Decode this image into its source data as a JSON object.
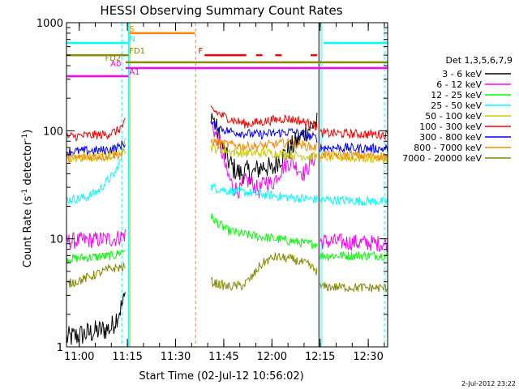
{
  "chart_data": {
    "type": "line",
    "title": "HESSI Observing Summary Count Rates",
    "ylabel_main": "Count Rate (s",
    "ylabel_sup1": "-1",
    "ylabel_mid": " detector",
    "ylabel_sup2": "-1",
    "ylabel_end": ")",
    "xlabel": "Start Time (02-Jul-12 10:56:02)",
    "timestamp": "2-Jul-2012 23:22",
    "y_scale": "log",
    "ylim": [
      1,
      1000
    ],
    "xlim_minutes": [
      0,
      100
    ],
    "yticks": [
      {
        "value": 1,
        "label": "1"
      },
      {
        "value": 10,
        "label": "10"
      },
      {
        "value": 100,
        "label": "100"
      },
      {
        "value": 1000,
        "label": "1000"
      }
    ],
    "xticks": [
      {
        "minute": 3.97,
        "label": "11:00"
      },
      {
        "minute": 18.97,
        "label": "11:15"
      },
      {
        "minute": 33.97,
        "label": "11:30"
      },
      {
        "minute": 48.97,
        "label": "11:45"
      },
      {
        "minute": 63.97,
        "label": "12:00"
      },
      {
        "minute": 78.97,
        "label": "12:15"
      },
      {
        "minute": 93.97,
        "label": "12:30"
      }
    ],
    "legend_header": "Det 1,3,5,6,7,9",
    "series": [
      {
        "name": "3 - 6 keV",
        "color": "#000000",
        "before": [
          [
            0,
            1.2
          ],
          [
            14,
            1.5
          ],
          [
            17.5,
            2.5
          ],
          [
            18.4,
            3
          ]
        ],
        "after": [
          [
            45,
            150
          ],
          [
            46,
            120
          ],
          [
            48,
            80
          ],
          [
            50,
            55
          ],
          [
            52,
            45
          ],
          [
            54,
            40
          ],
          [
            56,
            42
          ],
          [
            58,
            40
          ],
          [
            60,
            45
          ],
          [
            62,
            48
          ],
          [
            64,
            42
          ],
          [
            66,
            55
          ],
          [
            68,
            60
          ],
          [
            70,
            70
          ],
          [
            72,
            80
          ],
          [
            74,
            95
          ],
          [
            76,
            110
          ],
          [
            78,
            118
          ]
        ],
        "post": []
      },
      {
        "name": "6 - 12 keV",
        "color": "#ff00ff",
        "before": [
          [
            0,
            9.5
          ],
          [
            15,
            10
          ],
          [
            18.4,
            11
          ]
        ],
        "after": [
          [
            45,
            120
          ],
          [
            46,
            100
          ],
          [
            48,
            70
          ],
          [
            50,
            40
          ],
          [
            52,
            30
          ],
          [
            54,
            28
          ],
          [
            56,
            35
          ],
          [
            58,
            32
          ],
          [
            60,
            28
          ],
          [
            62,
            35
          ],
          [
            64,
            32
          ],
          [
            66,
            40
          ],
          [
            68,
            48
          ],
          [
            70,
            52
          ],
          [
            72,
            45
          ],
          [
            74,
            40
          ],
          [
            76,
            50
          ],
          [
            78,
            60
          ]
        ],
        "post": [
          [
            79,
            9.5
          ],
          [
            100,
            9
          ]
        ]
      },
      {
        "name": "12 - 25 keV",
        "color": "#00ff00",
        "before": [
          [
            0,
            6.5
          ],
          [
            15,
            7
          ],
          [
            18.4,
            8
          ]
        ],
        "after": [
          [
            45,
            16
          ],
          [
            47,
            14
          ],
          [
            50,
            12
          ],
          [
            55,
            11
          ],
          [
            60,
            10.5
          ],
          [
            65,
            10
          ],
          [
            70,
            9.5
          ],
          [
            75,
            9
          ],
          [
            78,
            9
          ]
        ],
        "post": [
          [
            79,
            7
          ],
          [
            100,
            7
          ]
        ]
      },
      {
        "name": "25 - 50 keV",
        "color": "#00ffff",
        "before": [
          [
            0,
            23
          ],
          [
            6,
            24
          ],
          [
            10,
            28
          ],
          [
            13,
            35
          ],
          [
            15,
            40
          ],
          [
            17,
            55
          ],
          [
            18.4,
            100
          ]
        ],
        "after": [
          [
            45,
            30
          ],
          [
            50,
            28
          ],
          [
            55,
            27
          ],
          [
            60,
            26
          ],
          [
            65,
            25
          ],
          [
            70,
            24
          ],
          [
            75,
            23.5
          ],
          [
            78,
            23
          ]
        ],
        "post": [
          [
            79,
            23
          ],
          [
            100,
            22
          ]
        ]
      },
      {
        "name": "50 - 100 keV",
        "color": "#cccc00",
        "before": [
          [
            0,
            55
          ],
          [
            12,
            57
          ],
          [
            15,
            62
          ],
          [
            17,
            68
          ],
          [
            18.4,
            80
          ]
        ],
        "after": [
          [
            45,
            70
          ],
          [
            50,
            65
          ],
          [
            55,
            62
          ],
          [
            60,
            62
          ],
          [
            65,
            62
          ],
          [
            70,
            60
          ],
          [
            75,
            58
          ],
          [
            78,
            58
          ]
        ],
        "post": [
          [
            79,
            57
          ],
          [
            100,
            55
          ]
        ]
      },
      {
        "name": "100 - 300 keV",
        "color": "#ff0000",
        "before": [
          [
            0,
            88
          ],
          [
            12,
            92
          ],
          [
            16,
            100
          ],
          [
            18.4,
            120
          ]
        ],
        "after": [
          [
            45,
            160
          ],
          [
            48,
            140
          ],
          [
            52,
            125
          ],
          [
            56,
            115
          ],
          [
            60,
            120
          ],
          [
            64,
            125
          ],
          [
            68,
            130
          ],
          [
            72,
            125
          ],
          [
            76,
            115
          ],
          [
            78,
            110
          ]
        ],
        "post": [
          [
            79,
            95
          ],
          [
            100,
            92
          ]
        ]
      },
      {
        "name": "300 - 800 keV",
        "color": "#0000ff",
        "before": [
          [
            0,
            64
          ],
          [
            12,
            66
          ],
          [
            16,
            70
          ],
          [
            18.4,
            78
          ]
        ],
        "after": [
          [
            45,
            115
          ],
          [
            50,
            100
          ],
          [
            55,
            95
          ],
          [
            60,
            92
          ],
          [
            65,
            95
          ],
          [
            70,
            98
          ],
          [
            75,
            90
          ],
          [
            78,
            85
          ]
        ],
        "post": [
          [
            79,
            70
          ],
          [
            100,
            68
          ]
        ]
      },
      {
        "name": "800 - 7000 keV",
        "color": "#ff8800",
        "before": [
          [
            0,
            56
          ],
          [
            12,
            58
          ],
          [
            16,
            60
          ],
          [
            18.4,
            62
          ]
        ],
        "after": [
          [
            45,
            80
          ],
          [
            50,
            75
          ],
          [
            55,
            72
          ],
          [
            60,
            72
          ],
          [
            65,
            75
          ],
          [
            70,
            78
          ],
          [
            75,
            72
          ],
          [
            78,
            70
          ]
        ],
        "post": [
          [
            79,
            60
          ],
          [
            100,
            58
          ]
        ]
      },
      {
        "name": "7000 - 20000 keV",
        "color": "#888800",
        "before": [
          [
            0,
            3.8
          ],
          [
            5,
            4.2
          ],
          [
            10,
            4.8
          ],
          [
            14,
            5.3
          ],
          [
            18.4,
            5.5
          ]
        ],
        "after": [
          [
            45,
            4
          ],
          [
            50,
            3.6
          ],
          [
            55,
            3.7
          ],
          [
            58,
            4.5
          ],
          [
            60,
            5.5
          ],
          [
            62,
            6.2
          ],
          [
            65,
            6.8
          ],
          [
            70,
            6.5
          ],
          [
            75,
            5.8
          ],
          [
            78,
            5
          ]
        ],
        "post": [
          [
            79,
            3.6
          ],
          [
            100,
            3.5
          ]
        ]
      }
    ],
    "flags": [
      {
        "label": "S",
        "color": "#ff8800",
        "minute": 19.5,
        "y": 800,
        "segments": [
          [
            19.5,
            40
          ]
        ]
      },
      {
        "label": "N",
        "color": "#00ffff",
        "minute": 19.5,
        "y": 650,
        "segments": [
          [
            0,
            19.3
          ],
          [
            80,
            100
          ]
        ]
      },
      {
        "label": "F",
        "color": "#ff0000",
        "minute": 41,
        "y": 500,
        "segments": [
          [
            43,
            56
          ],
          [
            59,
            61
          ],
          [
            65,
            67
          ],
          [
            76,
            78
          ]
        ]
      },
      {
        "label": "FD1",
        "color": "#888800",
        "minute": 19.5,
        "y": 500,
        "segments": [
          [
            0,
            19.3
          ]
        ]
      },
      {
        "label": "FD2",
        "color": "#888800",
        "minute": 17,
        "y": 430,
        "segments": [
          [
            18.4,
            100
          ]
        ]
      },
      {
        "label": "A0",
        "color": "#ff00ff",
        "minute": 17,
        "y": 380,
        "segments": [
          [
            18.4,
            100
          ]
        ]
      },
      {
        "label": "A1",
        "color": "#ff00ff",
        "minute": 19.5,
        "y": 320,
        "segments": [
          [
            0,
            19.3
          ]
        ]
      }
    ],
    "vertical_markers": [
      {
        "minute": 0,
        "color": "#00ffff",
        "style": "solid"
      },
      {
        "minute": 17.2,
        "color": "#00ffff",
        "style": "dashed"
      },
      {
        "minute": 19.3,
        "color": "#00ffff",
        "style": "solid"
      },
      {
        "minute": 19.7,
        "color": "#ff8800",
        "style": "solid"
      },
      {
        "minute": 40.2,
        "color": "#ff8800",
        "style": "dashed"
      },
      {
        "minute": 78.6,
        "color": "#000000",
        "style": "solid"
      },
      {
        "minute": 79.3,
        "color": "#00ffff",
        "style": "solid"
      },
      {
        "minute": 99,
        "color": "#00ffff",
        "style": "dashed"
      }
    ]
  }
}
